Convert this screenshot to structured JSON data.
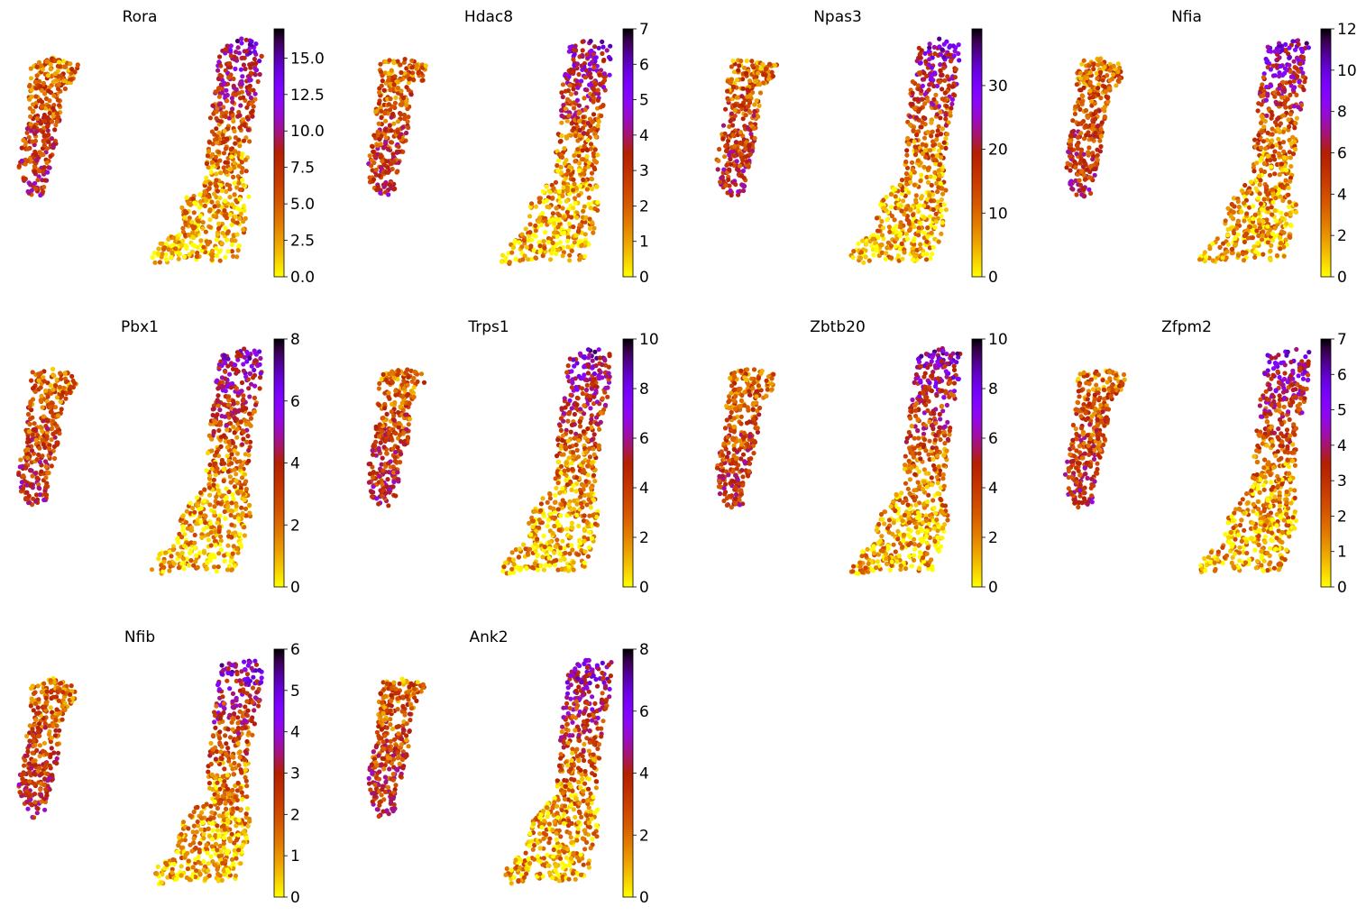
{
  "chart_data": {
    "type": "scatter",
    "description_kind": "embedding scatter colored by gene expression",
    "colormap": [
      "#ffff00",
      "#e08000",
      "#b02000",
      "#8000ff",
      "#000000"
    ],
    "panels": [
      {
        "title": "Rora",
        "vmin": 0,
        "vmax": 17,
        "ticks": [
          0,
          2.5,
          5,
          7.5,
          10,
          12.5,
          15
        ],
        "tick_labels": [
          "0.0",
          "2.5",
          "5.0",
          "7.5",
          "10.0",
          "12.5",
          "15.0"
        ]
      },
      {
        "title": "Hdac8",
        "vmin": 0,
        "vmax": 7,
        "ticks": [
          0,
          1,
          2,
          3,
          4,
          5,
          6,
          7
        ],
        "tick_labels": [
          "0",
          "1",
          "2",
          "3",
          "4",
          "5",
          "6",
          "7"
        ]
      },
      {
        "title": "Npas3",
        "vmin": 0,
        "vmax": 38.9,
        "ticks": [
          0,
          10,
          20,
          30
        ],
        "tick_labels": [
          "0",
          "10",
          "20",
          "30"
        ]
      },
      {
        "title": "Nfia",
        "vmin": 0,
        "vmax": 12,
        "ticks": [
          0,
          2,
          4,
          6,
          8,
          10,
          12
        ],
        "tick_labels": [
          "0",
          "2",
          "4",
          "6",
          "8",
          "10",
          "12"
        ]
      },
      {
        "title": "Pbx1",
        "vmin": 0,
        "vmax": 8,
        "ticks": [
          0,
          2,
          4,
          6,
          8
        ],
        "tick_labels": [
          "0",
          "2",
          "4",
          "6",
          "8"
        ]
      },
      {
        "title": "Trps1",
        "vmin": 0,
        "vmax": 10,
        "ticks": [
          0,
          2,
          4,
          6,
          8,
          10
        ],
        "tick_labels": [
          "0",
          "2",
          "4",
          "6",
          "8",
          "10"
        ]
      },
      {
        "title": "Zbtb20",
        "vmin": 0,
        "vmax": 10,
        "ticks": [
          0,
          2,
          4,
          6,
          8,
          10
        ],
        "tick_labels": [
          "0",
          "2",
          "4",
          "6",
          "8",
          "10"
        ]
      },
      {
        "title": "Zfpm2",
        "vmin": 0,
        "vmax": 7,
        "ticks": [
          0,
          1,
          2,
          3,
          4,
          5,
          6,
          7
        ],
        "tick_labels": [
          "0",
          "1",
          "2",
          "3",
          "4",
          "5",
          "6",
          "7"
        ]
      },
      {
        "title": "Nfib",
        "vmin": 0,
        "vmax": 6,
        "ticks": [
          0,
          1,
          2,
          3,
          4,
          5,
          6
        ],
        "tick_labels": [
          "0",
          "1",
          "2",
          "3",
          "4",
          "5",
          "6"
        ]
      },
      {
        "title": "Ank2",
        "vmin": 0,
        "vmax": 8,
        "ticks": [
          0,
          2,
          4,
          6,
          8
        ],
        "tick_labels": [
          "0",
          "2",
          "4",
          "6",
          "8"
        ]
      }
    ]
  }
}
